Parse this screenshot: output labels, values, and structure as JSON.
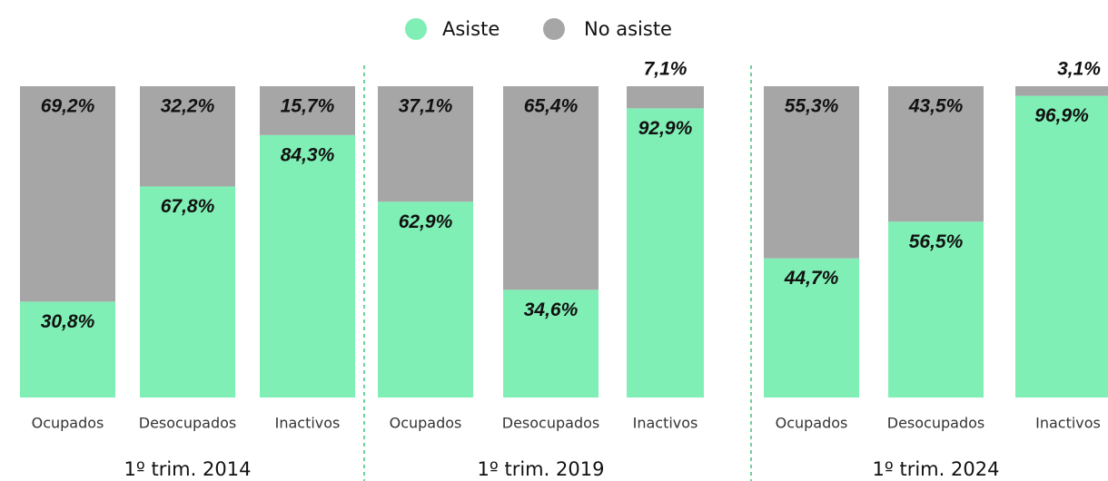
{
  "chart_data": {
    "type": "stacked_bar",
    "groups": [
      "1º trim. 2014",
      "1º trim. 2019",
      "1º trim. 2024"
    ],
    "categories": [
      "Ocupados",
      "Desocupados",
      "Inactivos",
      "Ocupados",
      "Desocupados",
      "Inactivos",
      "Ocupados",
      "Desocupados",
      "Inactivos"
    ],
    "ylim": [
      0,
      100
    ],
    "legend": "top",
    "series": [
      {
        "name": "Asiste",
        "color": "#80efb5",
        "values": [
          30.8,
          67.8,
          84.3,
          62.9,
          34.6,
          92.9,
          44.7,
          56.5,
          96.9
        ],
        "value_labels": [
          "30,8%",
          "67,8%",
          "84,3%",
          "62,9%",
          "34,6%",
          "92,9%",
          "44,7%",
          "56,5%",
          "96,9%"
        ]
      },
      {
        "name": "No asiste",
        "color": "#a6a6a6",
        "values": [
          69.2,
          32.2,
          15.7,
          37.1,
          65.4,
          7.1,
          55.3,
          43.5,
          3.1
        ],
        "value_labels": [
          "69,2%",
          "32,2%",
          "15,7%",
          "37,1%",
          "65,4%",
          "7,1%",
          "55,3%",
          "43,5%",
          "3,1%"
        ]
      }
    ]
  }
}
